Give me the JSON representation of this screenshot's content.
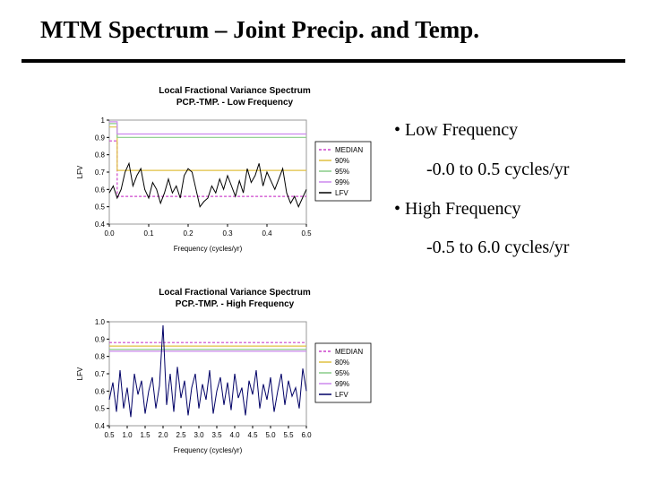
{
  "slide": {
    "title": "MTM Spectrum – Joint Precip. and Temp."
  },
  "bullets": [
    {
      "heading": "• Low Frequency",
      "detail": "-0.0 to 0.5 cycles/yr"
    },
    {
      "heading": "• High Frequency",
      "detail": "-0.5 to 6.0 cycles/yr"
    }
  ],
  "chart_data": [
    {
      "type": "line",
      "title": "Local Fractional Variance Spectrum",
      "subtitle": "PCP.-TMP. - Low Frequency",
      "xlabel": "Frequency (cycles/yr)",
      "ylabel": "LFV",
      "xlim": [
        0.0,
        0.5
      ],
      "ylim": [
        0.4,
        1.0
      ],
      "xticks": [
        "0.0",
        "0.1",
        "0.2",
        "0.3",
        "0.4",
        "0.5"
      ],
      "yticks": [
        "0.4",
        "0.5",
        "0.6",
        "0.7",
        "0.8",
        "0.9",
        "1"
      ],
      "grid": false,
      "legend": "right",
      "series": [
        {
          "name": "MEDIAN",
          "color": "#cc44cc",
          "style": "dash",
          "x": [
            0.0,
            0.02,
            0.02,
            0.5
          ],
          "y": [
            0.88,
            0.88,
            0.56,
            0.56
          ]
        },
        {
          "name": "90%",
          "color": "#e0c040",
          "style": "solid",
          "x": [
            0.0,
            0.02,
            0.02,
            0.5
          ],
          "y": [
            0.96,
            0.96,
            0.71,
            0.71
          ]
        },
        {
          "name": "95%",
          "color": "#88cc88",
          "style": "solid",
          "x": [
            0.0,
            0.02,
            0.02,
            0.5
          ],
          "y": [
            0.98,
            0.98,
            0.9,
            0.9
          ]
        },
        {
          "name": "99%",
          "color": "#cc88ee",
          "style": "solid",
          "x": [
            0.0,
            0.02,
            0.02,
            0.5
          ],
          "y": [
            0.99,
            0.99,
            0.92,
            0.92
          ]
        },
        {
          "name": "LFV",
          "color": "#000000",
          "style": "solid",
          "x": [
            0.0,
            0.01,
            0.02,
            0.03,
            0.04,
            0.05,
            0.06,
            0.07,
            0.08,
            0.09,
            0.1,
            0.11,
            0.12,
            0.13,
            0.14,
            0.15,
            0.16,
            0.17,
            0.18,
            0.19,
            0.2,
            0.21,
            0.22,
            0.23,
            0.24,
            0.25,
            0.26,
            0.27,
            0.28,
            0.29,
            0.3,
            0.31,
            0.32,
            0.33,
            0.34,
            0.35,
            0.36,
            0.37,
            0.38,
            0.39,
            0.4,
            0.41,
            0.42,
            0.43,
            0.44,
            0.45,
            0.46,
            0.47,
            0.48,
            0.49,
            0.5
          ],
          "y": [
            0.58,
            0.62,
            0.55,
            0.6,
            0.7,
            0.75,
            0.62,
            0.68,
            0.72,
            0.6,
            0.55,
            0.64,
            0.6,
            0.52,
            0.58,
            0.66,
            0.58,
            0.62,
            0.55,
            0.68,
            0.72,
            0.7,
            0.6,
            0.5,
            0.53,
            0.55,
            0.62,
            0.58,
            0.66,
            0.6,
            0.68,
            0.62,
            0.56,
            0.65,
            0.58,
            0.72,
            0.64,
            0.68,
            0.75,
            0.62,
            0.7,
            0.65,
            0.6,
            0.66,
            0.72,
            0.58,
            0.52,
            0.56,
            0.5,
            0.55,
            0.6
          ]
        }
      ]
    },
    {
      "type": "line",
      "title": "Local Fractional Variance Spectrum",
      "subtitle": "PCP.-TMP. - High Frequency",
      "xlabel": "Frequency (cycles/yr)",
      "ylabel": "LFV",
      "xlim": [
        0.5,
        6.0
      ],
      "ylim": [
        0.4,
        1.0
      ],
      "xticks": [
        "0.5",
        "1.0",
        "1.5",
        "2.0",
        "2.5",
        "3.0",
        "3.5",
        "4.0",
        "4.5",
        "5.0",
        "5.5",
        "6.0"
      ],
      "yticks": [
        "0.4",
        "0.5",
        "0.6",
        "0.7",
        "0.8",
        "0.9",
        "1.0"
      ],
      "grid": false,
      "legend": "right",
      "series": [
        {
          "name": "MEDIAN",
          "color": "#cc44cc",
          "style": "dash",
          "x": [
            0.5,
            6.0
          ],
          "y": [
            0.88,
            0.88
          ]
        },
        {
          "name": "80%",
          "color": "#e0c040",
          "style": "solid",
          "x": [
            0.5,
            6.0
          ],
          "y": [
            0.86,
            0.86
          ]
        },
        {
          "name": "95%",
          "color": "#88cc88",
          "style": "solid",
          "x": [
            0.5,
            6.0
          ],
          "y": [
            0.84,
            0.84
          ]
        },
        {
          "name": "99%",
          "color": "#cc88ee",
          "style": "solid",
          "x": [
            0.5,
            6.0
          ],
          "y": [
            0.83,
            0.83
          ]
        },
        {
          "name": "LFV",
          "color": "#000066",
          "style": "solid",
          "x": [
            0.5,
            0.6,
            0.7,
            0.8,
            0.9,
            1.0,
            1.1,
            1.2,
            1.3,
            1.4,
            1.5,
            1.6,
            1.7,
            1.8,
            1.9,
            2.0,
            2.1,
            2.2,
            2.3,
            2.4,
            2.5,
            2.6,
            2.7,
            2.8,
            2.9,
            3.0,
            3.1,
            3.2,
            3.3,
            3.4,
            3.5,
            3.6,
            3.7,
            3.8,
            3.9,
            4.0,
            4.1,
            4.2,
            4.3,
            4.4,
            4.5,
            4.6,
            4.7,
            4.8,
            4.9,
            5.0,
            5.1,
            5.2,
            5.3,
            5.4,
            5.5,
            5.6,
            5.7,
            5.8,
            5.9,
            6.0
          ],
          "y": [
            0.55,
            0.65,
            0.48,
            0.72,
            0.5,
            0.62,
            0.45,
            0.7,
            0.58,
            0.66,
            0.47,
            0.6,
            0.68,
            0.5,
            0.63,
            0.98,
            0.52,
            0.7,
            0.48,
            0.74,
            0.56,
            0.66,
            0.46,
            0.62,
            0.7,
            0.5,
            0.64,
            0.55,
            0.72,
            0.47,
            0.6,
            0.68,
            0.52,
            0.65,
            0.49,
            0.7,
            0.56,
            0.62,
            0.46,
            0.66,
            0.58,
            0.72,
            0.5,
            0.64,
            0.55,
            0.68,
            0.48,
            0.6,
            0.7,
            0.52,
            0.66,
            0.57,
            0.62,
            0.5,
            0.73,
            0.6
          ]
        }
      ]
    }
  ]
}
